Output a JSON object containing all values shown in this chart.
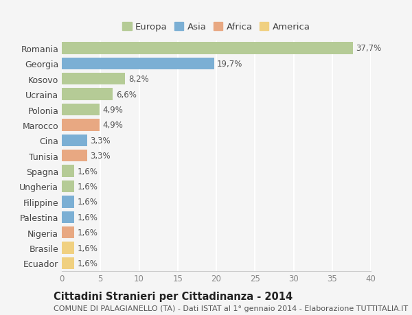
{
  "countries": [
    "Romania",
    "Georgia",
    "Kosovo",
    "Ucraina",
    "Polonia",
    "Marocco",
    "Cina",
    "Tunisia",
    "Spagna",
    "Ungheria",
    "Filippine",
    "Palestina",
    "Nigeria",
    "Brasile",
    "Ecuador"
  ],
  "values": [
    37.7,
    19.7,
    8.2,
    6.6,
    4.9,
    4.9,
    3.3,
    3.3,
    1.6,
    1.6,
    1.6,
    1.6,
    1.6,
    1.6,
    1.6
  ],
  "labels": [
    "37,7%",
    "19,7%",
    "8,2%",
    "6,6%",
    "4,9%",
    "4,9%",
    "3,3%",
    "3,3%",
    "1,6%",
    "1,6%",
    "1,6%",
    "1,6%",
    "1,6%",
    "1,6%",
    "1,6%"
  ],
  "categories": [
    "Europa",
    "Asia",
    "Africa",
    "America"
  ],
  "continent": [
    "Europa",
    "Asia",
    "Europa",
    "Europa",
    "Europa",
    "Africa",
    "Asia",
    "Africa",
    "Europa",
    "Europa",
    "Asia",
    "Asia",
    "Africa",
    "America",
    "America"
  ],
  "colors": {
    "Europa": "#b5cb96",
    "Asia": "#7bafd4",
    "Africa": "#e8a882",
    "America": "#f0d080"
  },
  "title": "Cittadini Stranieri per Cittadinanza - 2014",
  "subtitle": "COMUNE DI PALAGIANELLO (TA) - Dati ISTAT al 1° gennaio 2014 - Elaborazione TUTTITALIA.IT",
  "xlim": [
    0,
    40
  ],
  "xticks": [
    0,
    5,
    10,
    15,
    20,
    25,
    30,
    35,
    40
  ],
  "background_color": "#f5f5f5",
  "grid_color": "#ffffff",
  "bar_height": 0.78,
  "label_fontsize": 8.5,
  "title_fontsize": 10.5,
  "subtitle_fontsize": 8,
  "tick_fontsize": 8.5,
  "legend_fontsize": 9.5,
  "ytick_fontsize": 9
}
